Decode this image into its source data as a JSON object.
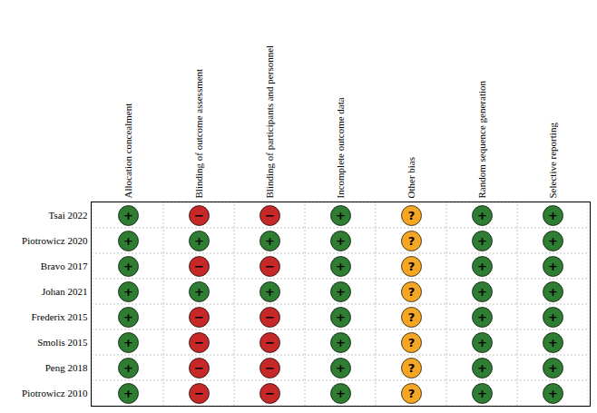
{
  "chart_data": {
    "type": "heatmap",
    "categories": [
      "Allocation concealment",
      "Blinding of outcome assessment",
      "Blinding of participants and personnel",
      "Incomplete outcome data",
      "Other bias",
      "Random sequence generation",
      "Selective reporting"
    ],
    "rows": [
      "Tsai 2022",
      "Piotrowicz 2020",
      "Bravo 2017",
      "Johan 2021",
      "Frederix 2015",
      "Smolis 2015",
      "Peng 2018",
      "Piotrowicz 2010"
    ],
    "cells": [
      [
        "+",
        "−",
        "−",
        "+",
        "?",
        "+",
        "+"
      ],
      [
        "+",
        "+",
        "+",
        "+",
        "?",
        "+",
        "+"
      ],
      [
        "+",
        "−",
        "−",
        "+",
        "?",
        "+",
        "+"
      ],
      [
        "+",
        "+",
        "+",
        "+",
        "?",
        "+",
        "+"
      ],
      [
        "+",
        "−",
        "−",
        "+",
        "?",
        "+",
        "+"
      ],
      [
        "+",
        "−",
        "−",
        "+",
        "?",
        "+",
        "+"
      ],
      [
        "+",
        "−",
        "−",
        "+",
        "?",
        "+",
        "+"
      ],
      [
        "+",
        "−",
        "−",
        "+",
        "?",
        "+",
        "+"
      ]
    ],
    "cell_colors": {
      "+": "#2e7d32",
      "−": "#c62828",
      "?": "#f5a623"
    },
    "grid": true
  }
}
